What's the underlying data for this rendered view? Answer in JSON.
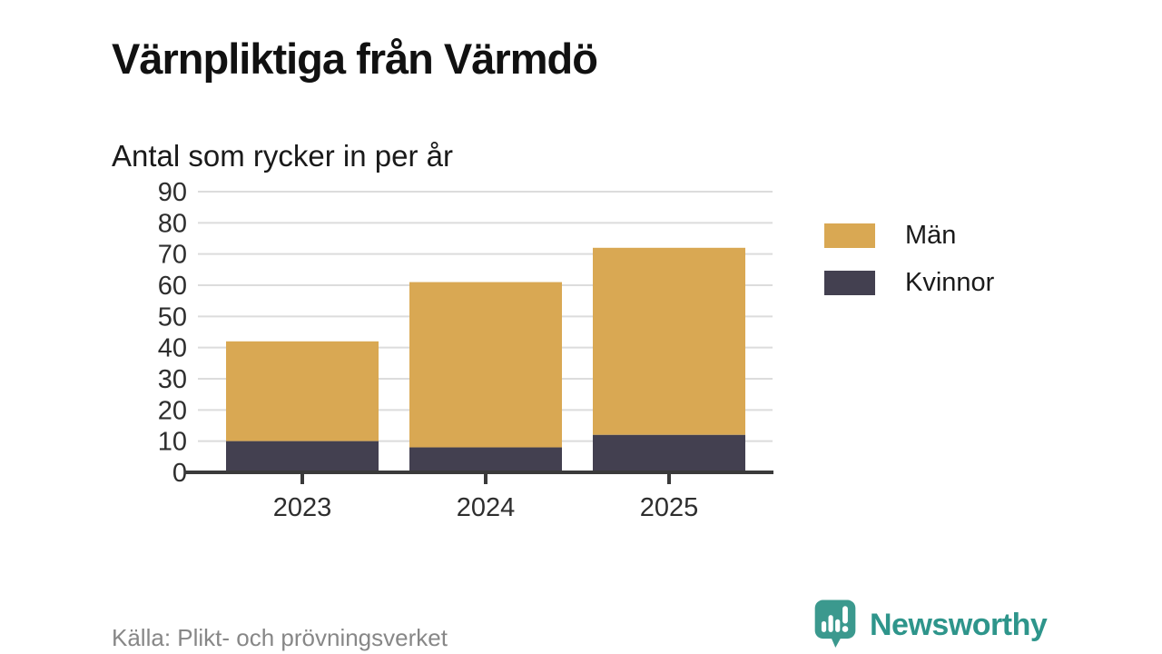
{
  "header": {
    "title": "Värnpliktiga från Värmdö",
    "subtitle": "Antal som rycker in per år"
  },
  "chart_data": {
    "type": "bar",
    "stacked": true,
    "title": "Värnpliktiga från Värmdö",
    "subtitle": "Antal som rycker in per år",
    "categories": [
      "2023",
      "2024",
      "2025"
    ],
    "series": [
      {
        "name": "Män",
        "color": "#D9A853",
        "values": [
          32,
          53,
          60
        ]
      },
      {
        "name": "Kvinnor",
        "color": "#434050",
        "values": [
          10,
          8,
          12
        ]
      }
    ],
    "stack_order_bottom_to_top": [
      "Kvinnor",
      "Män"
    ],
    "stacked_totals": [
      42,
      61,
      72
    ],
    "xlabel": "",
    "ylabel": "",
    "ylim": [
      0,
      90
    ],
    "ytick_step": 10,
    "grid": true,
    "grid_color": "#dcdcdc",
    "axis_color": "#3a3a3a",
    "tick_label_color": "#2e2e2e",
    "legend_position": "right"
  },
  "footer": {
    "source": "Källa: Plikt- och prövningsverket",
    "brand": "Newsworthy",
    "brand_color": "#2E958B",
    "brand_icon": "newsworthy-speech-bubble-bar-chart-icon"
  }
}
